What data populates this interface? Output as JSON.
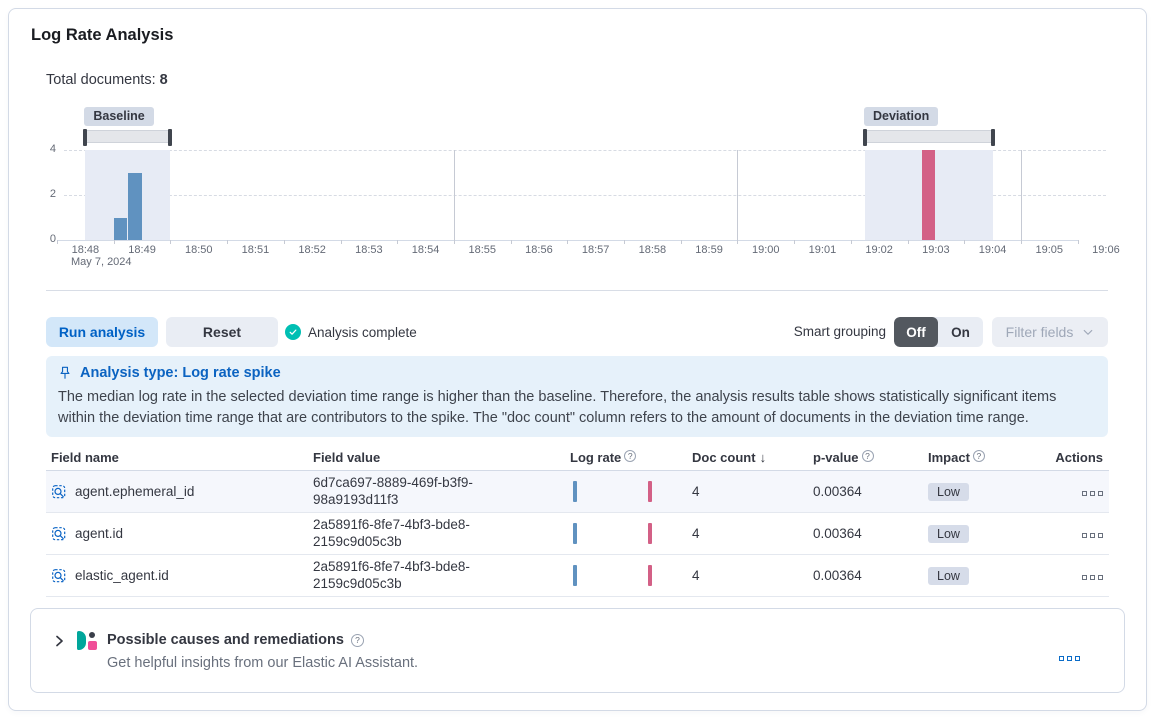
{
  "header": {
    "title": "Log Rate Analysis"
  },
  "summary": {
    "label": "Total documents:",
    "value": "8"
  },
  "chart_data": {
    "type": "bar",
    "title": "Document count histogram with baseline and deviation time ranges",
    "x_tick_labels": [
      "18:48",
      "18:49",
      "18:50",
      "18:51",
      "18:52",
      "18:53",
      "18:54",
      "18:55",
      "18:56",
      "18:57",
      "18:58",
      "18:59",
      "19:00",
      "19:01",
      "19:02",
      "19:03",
      "19:04",
      "19:05",
      "19:06"
    ],
    "x_date_label": "May 7, 2024",
    "y_ticks": [
      4,
      2,
      0
    ],
    "ylim": [
      0,
      4
    ],
    "h_gridline_values": [
      4,
      2
    ],
    "vertical_gridlines_min": [
      7,
      12,
      17
    ],
    "bucket_min": 0.25,
    "windows": [
      {
        "label": "Baseline",
        "start_min": 0.5,
        "end_min": 2.0
      },
      {
        "label": "Deviation",
        "start_min": 14.25,
        "end_min": 16.5
      }
    ],
    "bars": [
      {
        "time": "18:49:00",
        "start_min": 1.0,
        "value": 1,
        "series": "baseline"
      },
      {
        "time": "18:49:15",
        "start_min": 1.25,
        "value": 3,
        "series": "baseline"
      },
      {
        "time": "19:03:15",
        "start_min": 15.25,
        "value": 4,
        "series": "deviation"
      }
    ],
    "colors": {
      "baseline": "#6092C0",
      "deviation": "#D36086",
      "window": "#E7EBF5"
    }
  },
  "toolbar": {
    "run_label": "Run analysis",
    "reset_label": "Reset",
    "status_label": "Analysis complete",
    "smart_grouping_label": "Smart grouping",
    "off_label": "Off",
    "on_label": "On",
    "filter_fields_label": "Filter fields"
  },
  "callout": {
    "title": "Analysis type: Log rate spike",
    "body": "The median log rate in the selected deviation time range is higher than the baseline. Therefore, the analysis results table shows statistically significant items within the deviation time range that are contributors to the spike. The \"doc count\" column refers to the amount of documents in the deviation time range."
  },
  "table": {
    "columns": {
      "field_name": "Field name",
      "field_value": "Field value",
      "log_rate": "Log rate",
      "doc_count": "Doc count",
      "p_value": "p-value",
      "impact": "Impact",
      "actions": "Actions"
    },
    "sorted_column": "doc_count",
    "sort_direction": "descending",
    "rows": [
      {
        "field_name": "agent.ephemeral_id",
        "field_value": "6d7ca697-8889-469f-b3f9-98a9193d11f3",
        "doc_count": "4",
        "p_value": "0.00364",
        "impact": "Low"
      },
      {
        "field_name": "agent.id",
        "field_value": "2a5891f6-8fe7-4bf3-bde8-2159c9d05c3b",
        "doc_count": "4",
        "p_value": "0.00364",
        "impact": "Low"
      },
      {
        "field_name": "elastic_agent.id",
        "field_value": "2a5891f6-8fe7-4bf3-bde8-2159c9d05c3b",
        "doc_count": "4",
        "p_value": "0.00364",
        "impact": "Low"
      }
    ]
  },
  "footer": {
    "title": "Possible causes and remediations",
    "subtitle": "Get helpful insights from our Elastic AI Assistant."
  },
  "colors": {
    "primary": "#0061c5",
    "success": "#00bfb3",
    "callout_bg": "#e6f1fa",
    "badge_bg": "#d3dae6"
  }
}
